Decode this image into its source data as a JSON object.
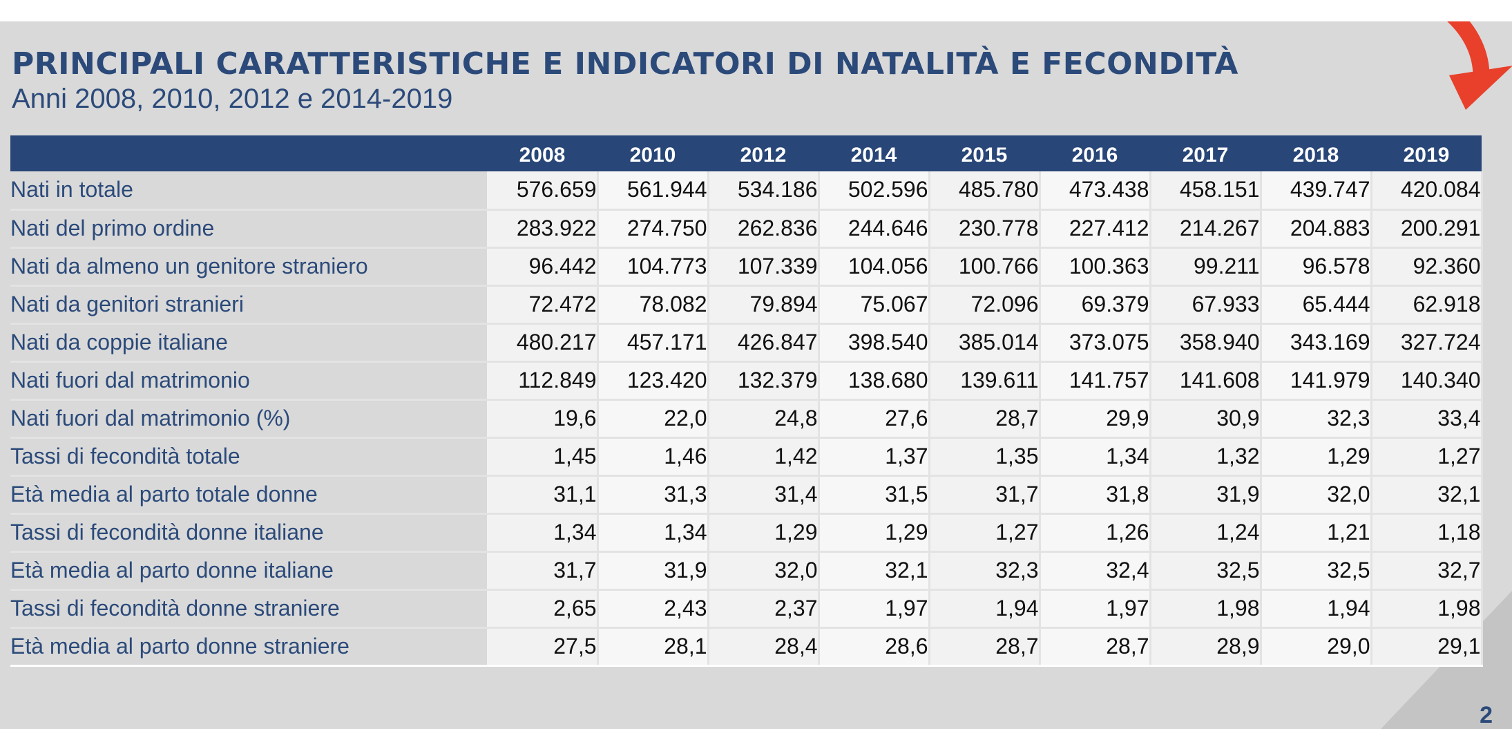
{
  "title": "PRINCIPALI CARATTERISTICHE E INDICATORI DI NATALITÀ E FECONDITÀ",
  "subtitle": "Anni 2008, 2010, 2012 e 2014-2019",
  "page_number": "2",
  "colors": {
    "header_bg": "#284677",
    "title": "#2b4a7a",
    "arrow": "#e8402a",
    "slide_bg": "#d9d9d9"
  },
  "table": {
    "years": [
      "2008",
      "2010",
      "2012",
      "2014",
      "2015",
      "2016",
      "2017",
      "2018",
      "2019"
    ],
    "rows": [
      {
        "label": "Nati in totale",
        "values": [
          "576.659",
          "561.944",
          "534.186",
          "502.596",
          "485.780",
          "473.438",
          "458.151",
          "439.747",
          "420.084"
        ]
      },
      {
        "label": "Nati del primo ordine",
        "values": [
          "283.922",
          "274.750",
          "262.836",
          "244.646",
          "230.778",
          "227.412",
          "214.267",
          "204.883",
          "200.291"
        ]
      },
      {
        "label": "Nati da almeno un genitore straniero",
        "values": [
          "96.442",
          "104.773",
          "107.339",
          "104.056",
          "100.766",
          "100.363",
          "99.211",
          "96.578",
          "92.360"
        ]
      },
      {
        "label": "Nati da genitori stranieri",
        "values": [
          "72.472",
          "78.082",
          "79.894",
          "75.067",
          "72.096",
          "69.379",
          "67.933",
          "65.444",
          "62.918"
        ]
      },
      {
        "label": "Nati da coppie italiane",
        "values": [
          "480.217",
          "457.171",
          "426.847",
          "398.540",
          "385.014",
          "373.075",
          "358.940",
          "343.169",
          "327.724"
        ]
      },
      {
        "label": "Nati fuori dal matrimonio",
        "values": [
          "112.849",
          "123.420",
          "132.379",
          "138.680",
          "139.611",
          "141.757",
          "141.608",
          "141.979",
          "140.340"
        ]
      },
      {
        "label": "Nati fuori dal matrimonio (%)",
        "values": [
          "19,6",
          "22,0",
          "24,8",
          "27,6",
          "28,7",
          "29,9",
          "30,9",
          "32,3",
          "33,4"
        ]
      },
      {
        "label": "Tassi di fecondità totale",
        "values": [
          "1,45",
          "1,46",
          "1,42",
          "1,37",
          "1,35",
          "1,34",
          "1,32",
          "1,29",
          "1,27"
        ]
      },
      {
        "label": "Età media al parto totale donne",
        "values": [
          "31,1",
          "31,3",
          "31,4",
          "31,5",
          "31,7",
          "31,8",
          "31,9",
          "32,0",
          "32,1"
        ]
      },
      {
        "label": "Tassi di fecondità donne italiane",
        "values": [
          "1,34",
          "1,34",
          "1,29",
          "1,29",
          "1,27",
          "1,26",
          "1,24",
          "1,21",
          "1,18"
        ]
      },
      {
        "label": "Età media al parto donne italiane",
        "values": [
          "31,7",
          "31,9",
          "32,0",
          "32,1",
          "32,3",
          "32,4",
          "32,5",
          "32,5",
          "32,7"
        ]
      },
      {
        "label": "Tassi di fecondità donne straniere",
        "values": [
          "2,65",
          "2,43",
          "2,37",
          "1,97",
          "1,94",
          "1,97",
          "1,98",
          "1,94",
          "1,98"
        ]
      },
      {
        "label": "Età media al parto donne straniere",
        "values": [
          "27,5",
          "28,1",
          "28,4",
          "28,6",
          "28,7",
          "28,7",
          "28,9",
          "29,0",
          "29,1"
        ]
      }
    ]
  }
}
